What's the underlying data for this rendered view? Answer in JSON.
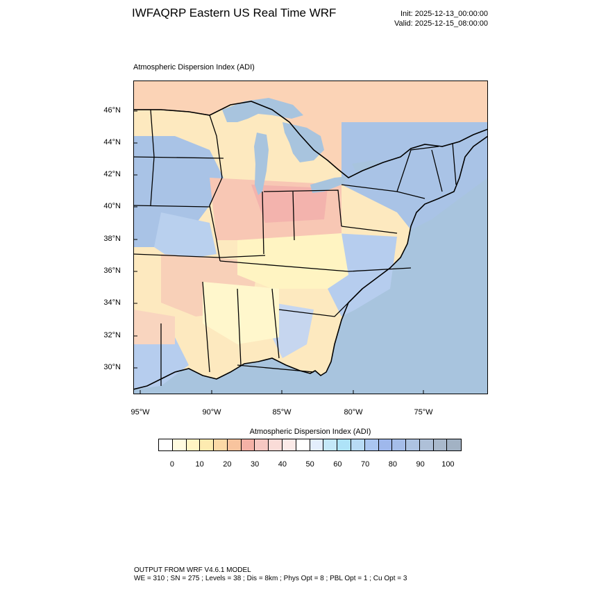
{
  "header": {
    "title": "IWFAQRP Eastern US Real Time WRF",
    "init": "Init: 2025-12-13_00:00:00",
    "valid": "Valid: 2025-12-15_08:00:00"
  },
  "map": {
    "subtitle": "Atmospheric Dispersion Index   (ADI)",
    "lat_labels": [
      "46°N",
      "44°N",
      "42°N",
      "40°N",
      "38°N",
      "36°N",
      "34°N",
      "32°N",
      "30°N"
    ],
    "lon_labels": [
      "95°W",
      "90°W",
      "85°W",
      "80°W",
      "75°W"
    ],
    "colors": {
      "ocean": "#a8c4de",
      "land_low": "#fff8c8",
      "land_mid": "#f9c9a8",
      "land_pink": "#f6b5ad",
      "land_blue": "#a9c3e6",
      "boundary": "#000000"
    }
  },
  "legend": {
    "title": "Atmospheric Dispersion Index  (ADI)",
    "labels": [
      "0",
      "10",
      "20",
      "30",
      "40",
      "50",
      "60",
      "70",
      "80",
      "90",
      "100"
    ],
    "colors": [
      "#ffffff",
      "#fffbe0",
      "#fff5c4",
      "#fdebb0",
      "#fbd9a6",
      "#f8c49e",
      "#f4b1a6",
      "#f6c8c2",
      "#fadcd8",
      "#fbeae8",
      "#ffffff",
      "#e3eefc",
      "#c4e8f8",
      "#aee3f8",
      "#b8dbf5",
      "#aac6f0",
      "#9fb8ec",
      "#a5bde9",
      "#adc3e2",
      "#aec0d8",
      "#a9b9cc",
      "#a2b2c4"
    ]
  },
  "footer": {
    "line1": "OUTPUT FROM WRF V4.6.1 MODEL",
    "line2": "WE = 310 ; SN = 275 ; Levels = 38 ; Dis = 8km ; Phys Opt = 8 ; PBL Opt = 1 ; Cu Opt = 3"
  }
}
